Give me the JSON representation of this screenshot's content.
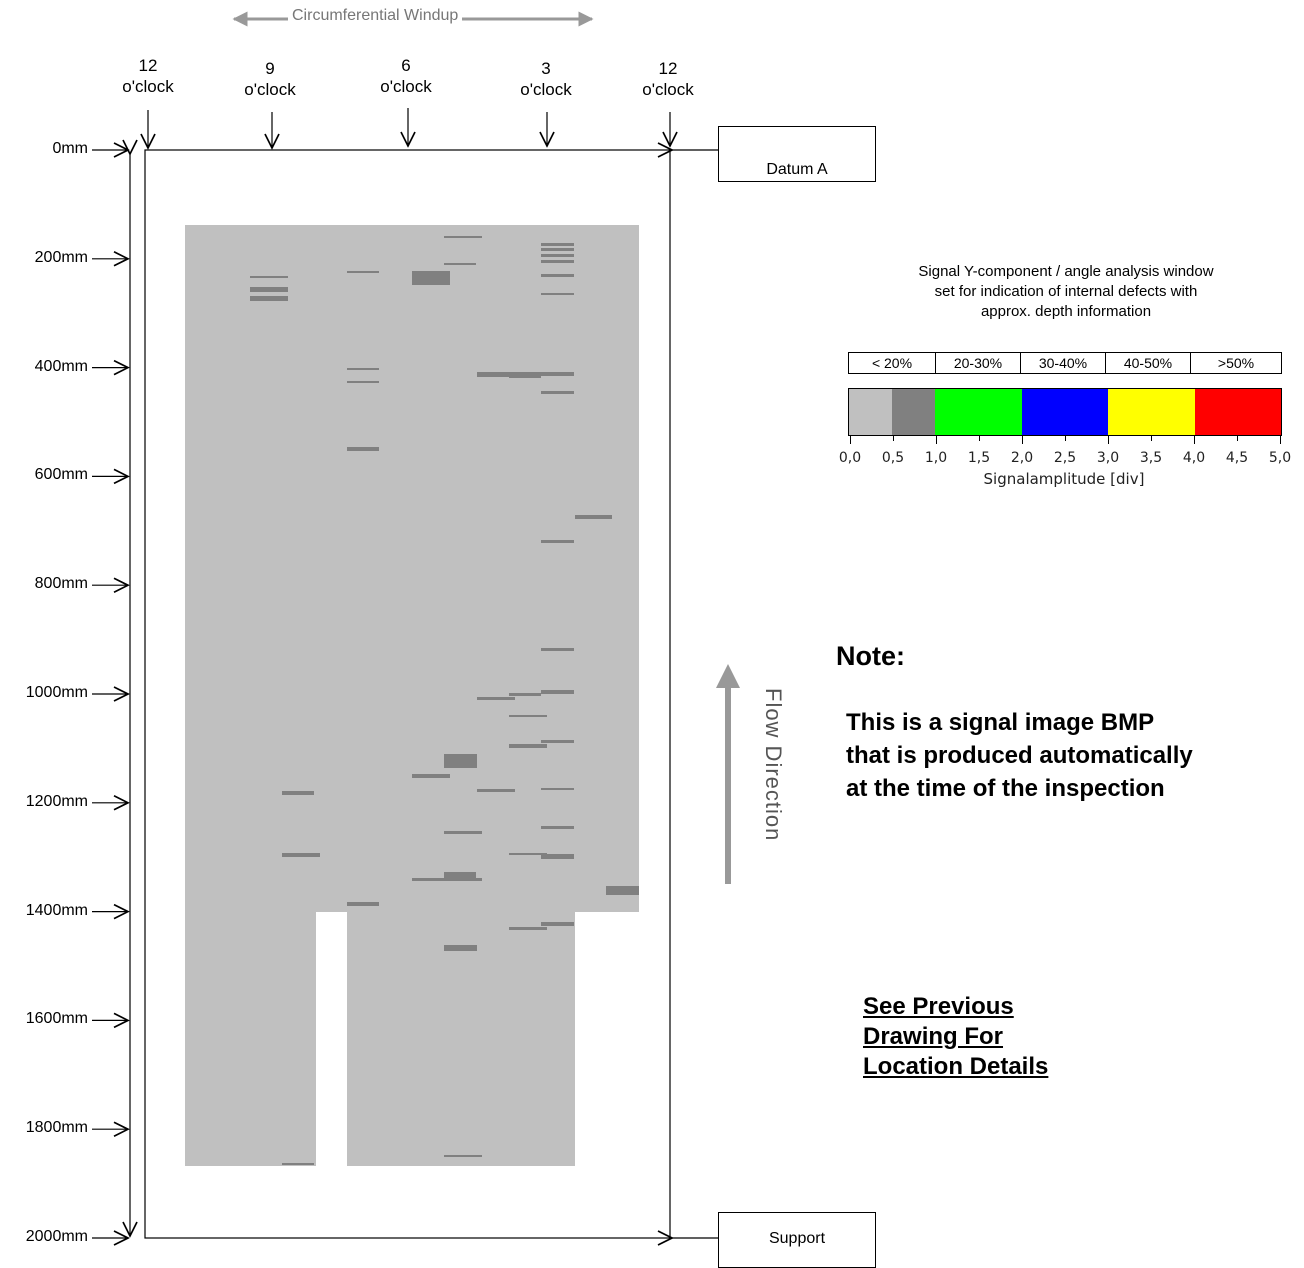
{
  "header": {
    "windup_label": "Circumferential Windup",
    "clock_positions": [
      {
        "hour": "12",
        "label": "o'clock"
      },
      {
        "hour": "9",
        "label": "o'clock"
      },
      {
        "hour": "6",
        "label": "o'clock"
      },
      {
        "hour": "3",
        "label": "o'clock"
      },
      {
        "hour": "12",
        "label": "o'clock"
      }
    ]
  },
  "axial_scale": {
    "unit": "mm",
    "labels": [
      "0mm",
      "200mm",
      "400mm",
      "600mm",
      "800mm",
      "1000mm",
      "1200mm",
      "1400mm",
      "1600mm",
      "1800mm",
      "2000mm"
    ]
  },
  "datum": {
    "top": "Datum A",
    "bottom": "Support"
  },
  "flow_direction": "Flow Direction",
  "legend": {
    "title_lines": [
      "Signal Y-component / angle analysis window",
      "set for indication of internal defects with",
      "approx. depth information"
    ],
    "depth_bins": [
      "< 20%",
      "20-30%",
      "30-40%",
      "40-50%",
      ">50%"
    ],
    "colors": [
      {
        "range": [
          0.0,
          0.5
        ],
        "hex": "#c0c0c0"
      },
      {
        "range": [
          0.5,
          1.0
        ],
        "hex": "#808080"
      },
      {
        "range": [
          1.0,
          2.0
        ],
        "hex": "#00ff00"
      },
      {
        "range": [
          2.0,
          3.0
        ],
        "hex": "#0000ff"
      },
      {
        "range": [
          3.0,
          4.0
        ],
        "hex": "#ffff00"
      },
      {
        "range": [
          4.0,
          5.0
        ],
        "hex": "#ff0000"
      }
    ],
    "ticks": [
      "0,0",
      "0,5",
      "1,0",
      "1,5",
      "2,0",
      "2,5",
      "3,0",
      "3,5",
      "4,0",
      "4,5",
      "5,0"
    ],
    "axis_label": "Signalamplitude [div]"
  },
  "note": {
    "title": "Note:",
    "lines": [
      "This is a signal image BMP",
      "that is produced automatically",
      "at the time of the inspection"
    ]
  },
  "see_previous": [
    "See Previous",
    "Drawing For",
    "Location Details"
  ],
  "signal_map": {
    "background_hex": "#c0c0c0",
    "indication_hex": "#808080"
  }
}
